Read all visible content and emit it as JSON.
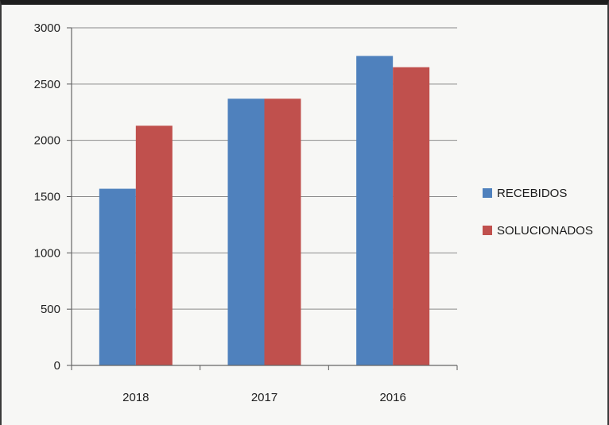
{
  "chart_data": {
    "type": "bar",
    "title": "",
    "xlabel": "",
    "ylabel": "",
    "categories": [
      "2018",
      "2017",
      "2016"
    ],
    "series": [
      {
        "name": "RECEBIDOS",
        "values": [
          1570,
          2370,
          2750
        ],
        "color": "#4f81bd"
      },
      {
        "name": "SOLUCIONADOS",
        "values": [
          2130,
          2370,
          2650
        ],
        "color": "#c0504d"
      }
    ],
    "ylim": [
      0,
      3000
    ],
    "yticks": [
      "0",
      "500",
      "1000",
      "1500",
      "2000",
      "2500",
      "3000"
    ],
    "grid": true,
    "legend_position": "right"
  }
}
